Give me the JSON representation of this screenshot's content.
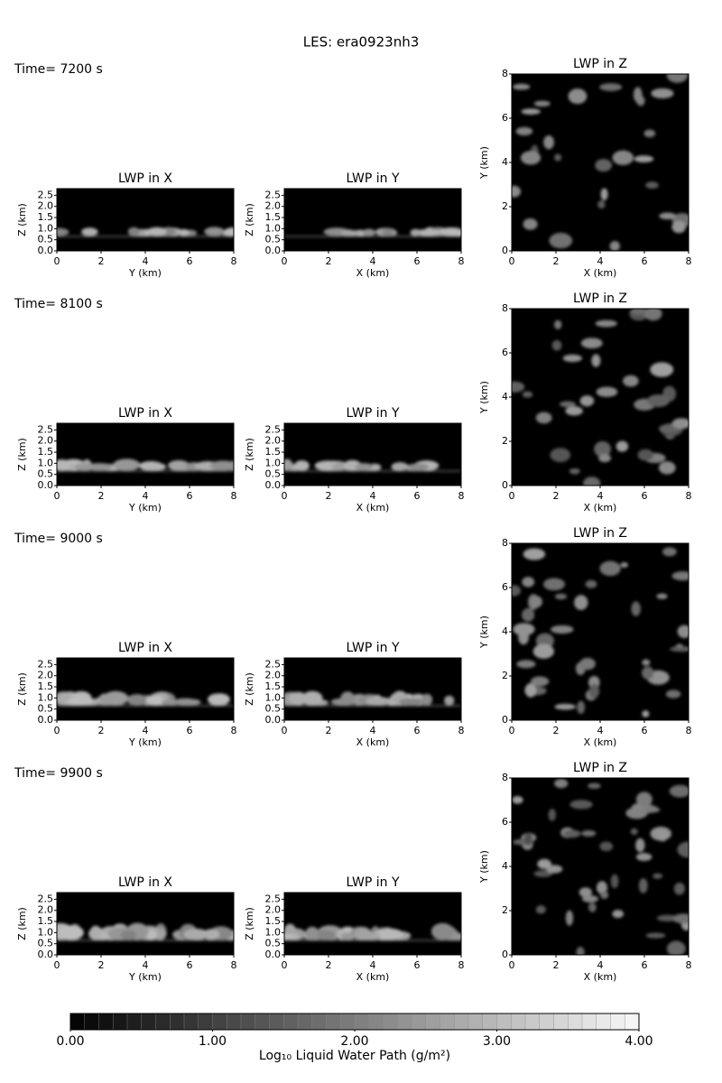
{
  "title": "LES: era0923nh3",
  "rows": [
    {
      "time": "Time= 7200 s"
    },
    {
      "time": "Time= 8100 s"
    },
    {
      "time": "Time= 9000 s"
    },
    {
      "time": "Time= 9900 s"
    }
  ],
  "panels": [
    {
      "title": "LWP in X",
      "xlabel": "Y (km)",
      "ylabel": "Z (km)",
      "xlim": [
        0,
        8
      ],
      "xticks": [
        0,
        2,
        4,
        6,
        8
      ],
      "ylim": [
        0,
        2.8
      ],
      "yticks": [
        {
          "value": 0,
          "label": "0.0"
        },
        {
          "value": 0.5,
          "label": "0.5"
        },
        {
          "value": 1,
          "label": "1.0"
        },
        {
          "value": 1.5,
          "label": "1.5"
        },
        {
          "value": 2,
          "label": "2.0"
        },
        {
          "value": 2.5,
          "label": "2.5"
        }
      ]
    },
    {
      "title": "LWP in Y",
      "xlabel": "X (km)",
      "ylabel": "Z (km)",
      "xlim": [
        0,
        8
      ],
      "xticks": [
        0,
        2,
        4,
        6,
        8
      ],
      "ylim": [
        0,
        2.8
      ],
      "yticks": [
        {
          "value": 0,
          "label": "0.0"
        },
        {
          "value": 0.5,
          "label": "0.5"
        },
        {
          "value": 1,
          "label": "1.0"
        },
        {
          "value": 1.5,
          "label": "1.5"
        },
        {
          "value": 2,
          "label": "2.0"
        },
        {
          "value": 2.5,
          "label": "2.5"
        }
      ]
    },
    {
      "title": "LWP in Z",
      "xlabel": "X (km)",
      "ylabel": "Y (km)",
      "xlim": [
        0,
        8
      ],
      "xticks": [
        0,
        2,
        4,
        6,
        8
      ],
      "ylim": [
        0,
        8
      ],
      "yticks": [
        0,
        2,
        4,
        6,
        8
      ]
    }
  ],
  "colorbar": {
    "label": "Log₁₀ Liquid Water Path (g/m²)",
    "clim": [
      0,
      4
    ],
    "ticks": [
      {
        "value": 0,
        "label": "0.00"
      },
      {
        "value": 1,
        "label": "1.00"
      },
      {
        "value": 2,
        "label": "2.00"
      },
      {
        "value": 3,
        "label": "3.00"
      },
      {
        "value": 4,
        "label": "4.00"
      }
    ]
  }
}
